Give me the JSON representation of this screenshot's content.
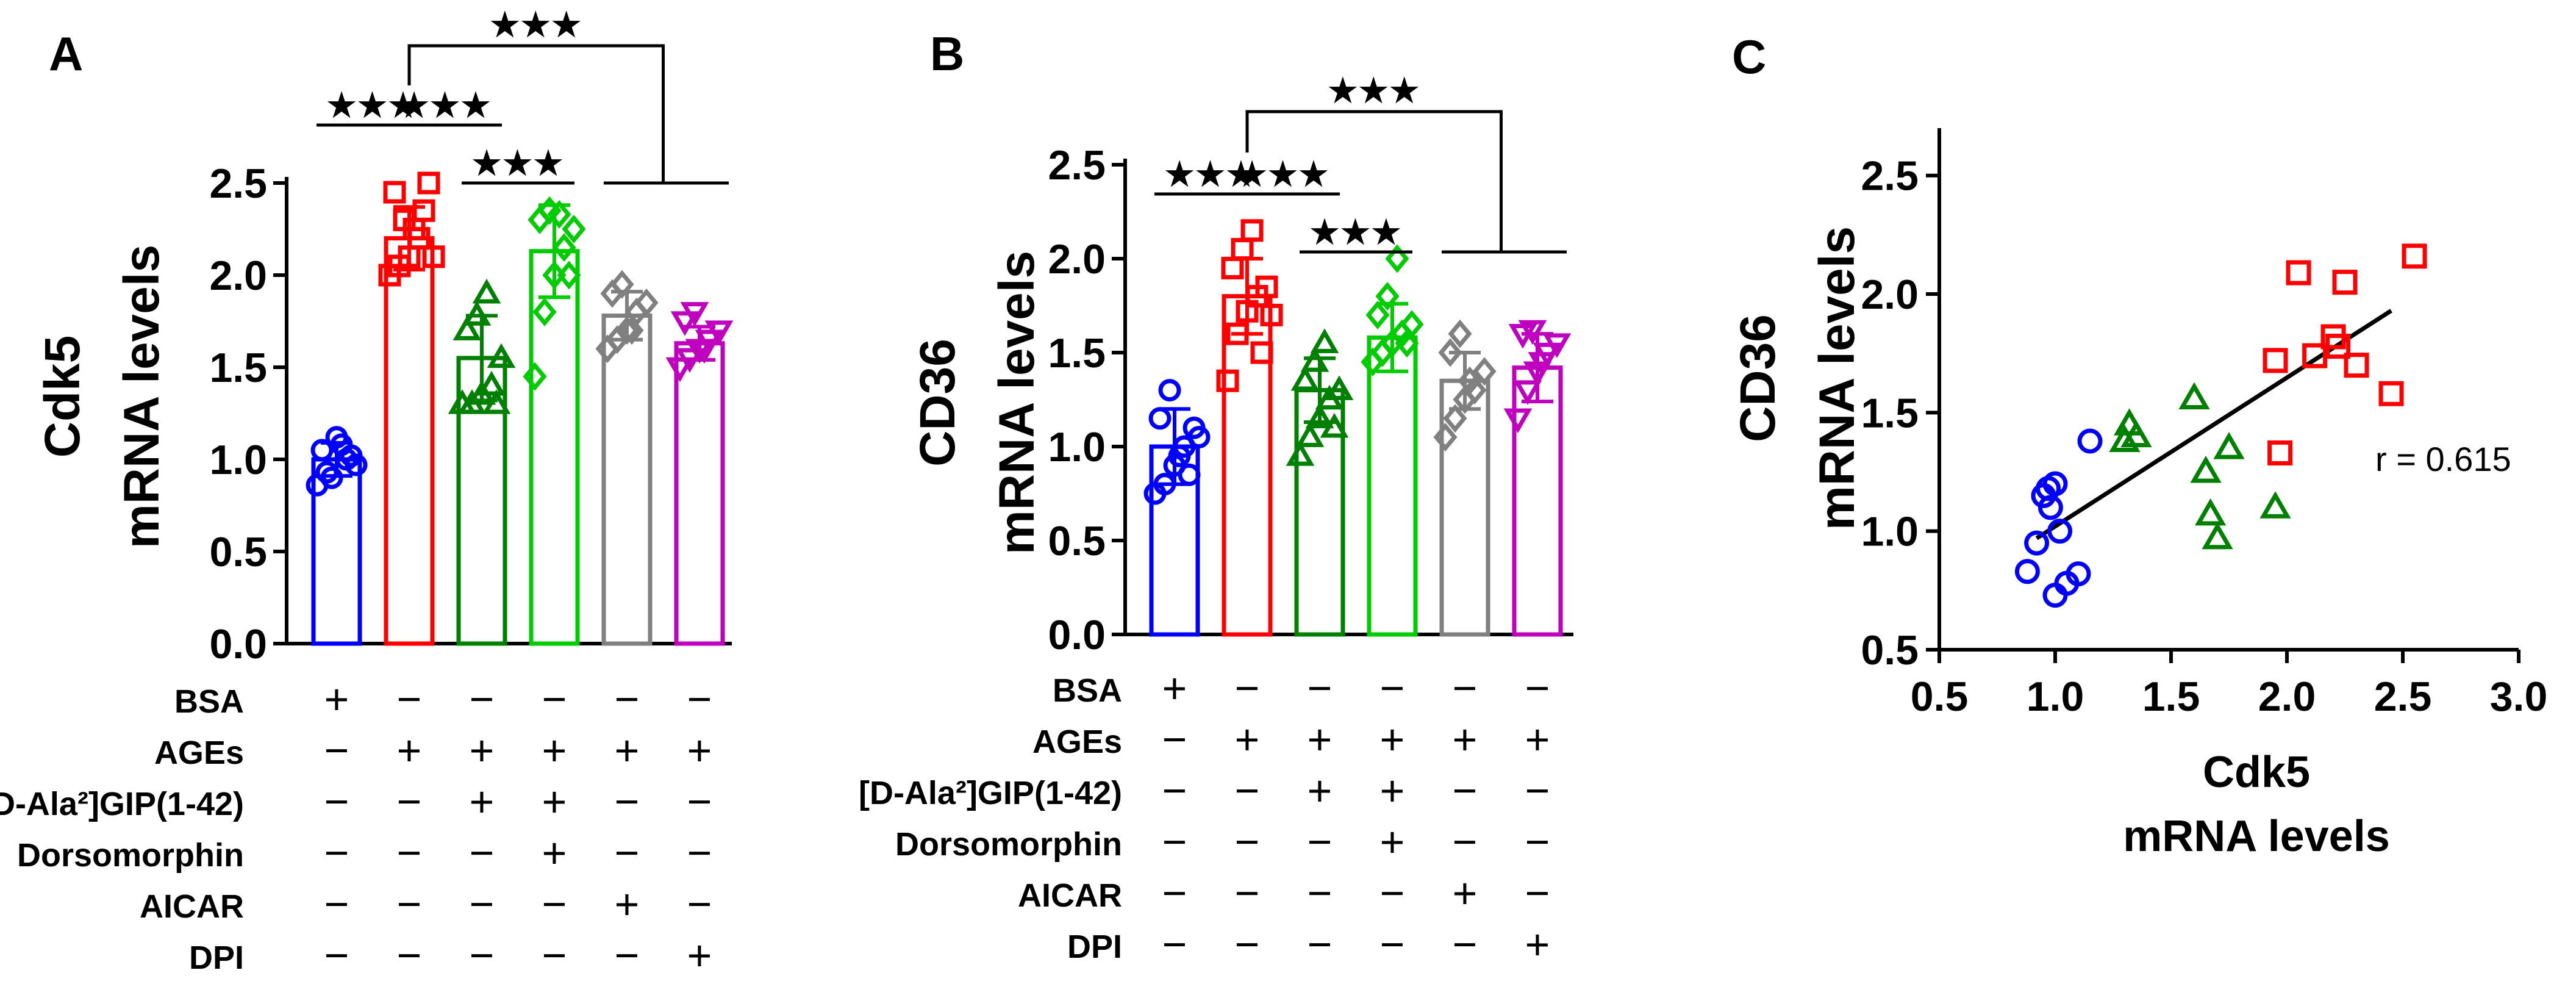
{
  "chart_data": [
    {
      "panel": "A",
      "type": "bar",
      "ylabel_line1": "Cdk5",
      "ylabel_line2": "mRNA levels",
      "ylim": [
        0.0,
        2.5
      ],
      "yticks": [
        "0.0",
        "0.5",
        "1.0",
        "1.5",
        "2.0",
        "2.5"
      ],
      "categories": [
        "BSA",
        "AGEs",
        "GIP",
        "GIP+Dorsomorphin",
        "AICAR",
        "DPI"
      ],
      "values": [
        1.0,
        2.2,
        1.55,
        2.13,
        1.78,
        1.63
      ],
      "sd": [
        0.09,
        0.17,
        0.23,
        0.25,
        0.13,
        0.09
      ],
      "colors": [
        "#0000ff",
        "#ff0000",
        "#008000",
        "#00cc00",
        "#808080",
        "#bf00bf"
      ],
      "markers": [
        "circle",
        "square",
        "triangle-up",
        "diamond",
        "diamond",
        "triangle-down"
      ],
      "points": [
        [
          0.86,
          0.93,
          1.12,
          1.0,
          0.97,
          1.05,
          0.9,
          1.08,
          1.02
        ],
        [
          2.0,
          2.05,
          2.1,
          2.2,
          2.5,
          2.45,
          2.3,
          2.25,
          2.35,
          2.1
        ],
        [
          1.3,
          1.3,
          1.35,
          1.4,
          1.55,
          1.7,
          1.78,
          1.9,
          1.3
        ],
        [
          1.45,
          1.8,
          2.0,
          2.15,
          2.25,
          2.3,
          2.35,
          2.33,
          2.0
        ],
        [
          1.6,
          1.65,
          1.7,
          1.8,
          1.85,
          1.9,
          1.95,
          1.7
        ],
        [
          1.5,
          1.55,
          1.6,
          1.65,
          1.7,
          1.75,
          1.8,
          1.6
        ]
      ],
      "sig_label": "★★★",
      "conditions": [
        {
          "label": "BSA",
          "signs": [
            "+",
            "−",
            "−",
            "−",
            "−",
            "−"
          ]
        },
        {
          "label": "AGEs",
          "signs": [
            "−",
            "+",
            "+",
            "+",
            "+",
            "+"
          ]
        },
        {
          "label": "[D-Ala²]GIP(1-42)",
          "signs": [
            "−",
            "−",
            "+",
            "+",
            "−",
            "−"
          ]
        },
        {
          "label": "Dorsomorphin",
          "signs": [
            "−",
            "−",
            "−",
            "+",
            "−",
            "−"
          ]
        },
        {
          "label": "AICAR",
          "signs": [
            "−",
            "−",
            "−",
            "−",
            "+",
            "−"
          ]
        },
        {
          "label": "DPI",
          "signs": [
            "−",
            "−",
            "−",
            "−",
            "−",
            "+"
          ]
        }
      ]
    },
    {
      "panel": "B",
      "type": "bar",
      "ylabel_line1": "CD36",
      "ylabel_line2": "mRNA levels",
      "ylim": [
        0.0,
        2.5
      ],
      "yticks": [
        "0.0",
        "0.5",
        "1.0",
        "1.5",
        "2.0",
        "2.5"
      ],
      "categories": [
        "BSA",
        "AGEs",
        "GIP",
        "GIP+Dorsomorphin",
        "AICAR",
        "DPI"
      ],
      "values": [
        1.0,
        1.8,
        1.3,
        1.58,
        1.35,
        1.42
      ],
      "sd": [
        0.2,
        0.2,
        0.17,
        0.18,
        0.15,
        0.18
      ],
      "colors": [
        "#0000ff",
        "#ff0000",
        "#008000",
        "#00cc00",
        "#808080",
        "#bf00bf"
      ],
      "markers": [
        "circle",
        "square",
        "triangle-up",
        "diamond",
        "diamond",
        "triangle-down"
      ],
      "points": [
        [
          0.75,
          0.8,
          0.9,
          1.0,
          1.1,
          1.15,
          1.3,
          0.95,
          0.85,
          1.05
        ],
        [
          1.35,
          1.6,
          1.72,
          1.8,
          1.85,
          1.95,
          2.05,
          2.15,
          1.5,
          1.7
        ],
        [
          0.95,
          1.05,
          1.15,
          1.25,
          1.3,
          1.35,
          1.45,
          1.55,
          1.1
        ],
        [
          1.45,
          1.5,
          1.55,
          1.6,
          1.65,
          1.7,
          1.8,
          2.0,
          1.55
        ],
        [
          1.05,
          1.15,
          1.25,
          1.3,
          1.4,
          1.5,
          1.6,
          1.35
        ],
        [
          1.15,
          1.3,
          1.4,
          1.5,
          1.55,
          1.6,
          1.62,
          1.45
        ]
      ],
      "sig_label": "★★★",
      "conditions": [
        {
          "label": "BSA",
          "signs": [
            "+",
            "−",
            "−",
            "−",
            "−",
            "−"
          ]
        },
        {
          "label": "AGEs",
          "signs": [
            "−",
            "+",
            "+",
            "+",
            "+",
            "+"
          ]
        },
        {
          "label": "[D-Ala²]GIP(1-42)",
          "signs": [
            "−",
            "−",
            "+",
            "+",
            "−",
            "−"
          ]
        },
        {
          "label": "Dorsomorphin",
          "signs": [
            "−",
            "−",
            "−",
            "+",
            "−",
            "−"
          ]
        },
        {
          "label": "AICAR",
          "signs": [
            "−",
            "−",
            "−",
            "−",
            "+",
            "−"
          ]
        },
        {
          "label": "DPI",
          "signs": [
            "−",
            "−",
            "−",
            "−",
            "−",
            "+"
          ]
        }
      ]
    },
    {
      "panel": "C",
      "type": "scatter",
      "xlabel_line1": "Cdk5",
      "xlabel_line2": "mRNA levels",
      "ylabel_line1": "CD36",
      "ylabel_line2": "mRNA levels",
      "xlim": [
        0.5,
        3.0
      ],
      "ylim": [
        0.5,
        2.7
      ],
      "xticks": [
        "0.5",
        "1.0",
        "1.5",
        "2.0",
        "2.5",
        "3.0"
      ],
      "yticks": [
        "0.5",
        "1.0",
        "1.5",
        "2.0",
        "2.5"
      ],
      "annotation": "r = 0.615",
      "fit_line": {
        "x": [
          0.92,
          2.45
        ],
        "y": [
          0.97,
          1.93
        ]
      },
      "series": [
        {
          "name": "BSA",
          "marker": "circle",
          "color": "#0000ff",
          "x": [
            0.88,
            0.92,
            0.95,
            0.98,
            1.0,
            1.02,
            1.05,
            1.1,
            1.15,
            0.97,
            1.0
          ],
          "y": [
            0.83,
            0.95,
            1.15,
            1.1,
            0.73,
            1.0,
            0.78,
            0.82,
            1.38,
            1.18,
            1.2
          ]
        },
        {
          "name": "AGEs",
          "marker": "square",
          "color": "#ff0000",
          "x": [
            1.95,
            1.97,
            2.05,
            2.12,
            2.2,
            2.22,
            2.25,
            2.3,
            2.45,
            2.55
          ],
          "y": [
            1.72,
            1.33,
            2.09,
            1.74,
            1.82,
            1.78,
            2.05,
            1.7,
            1.58,
            2.16
          ]
        },
        {
          "name": "GIP",
          "marker": "triangle",
          "color": "#008000",
          "x": [
            1.3,
            1.32,
            1.35,
            1.6,
            1.65,
            1.67,
            1.7,
            1.75,
            1.95
          ],
          "y": [
            1.38,
            1.45,
            1.4,
            1.56,
            1.25,
            1.07,
            0.97,
            1.35,
            1.1
          ]
        }
      ]
    }
  ],
  "panel_labels": [
    "A",
    "B",
    "C"
  ]
}
